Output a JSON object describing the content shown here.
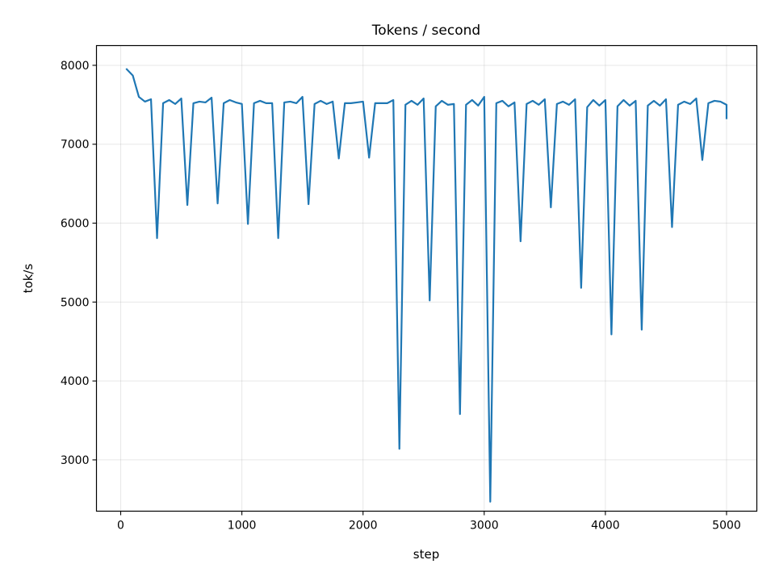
{
  "chart_data": {
    "type": "line",
    "title": "Tokens / second",
    "xlabel": "step",
    "ylabel": "tok/s",
    "xlim": [
      -200,
      5250
    ],
    "ylim": [
      2350,
      8250
    ],
    "xticks": [
      0,
      1000,
      2000,
      3000,
      4000,
      5000
    ],
    "yticks": [
      3000,
      4000,
      5000,
      6000,
      7000,
      8000
    ],
    "grid": true,
    "series": [
      {
        "color": "#1f77b4",
        "x": [
          50,
          100,
          150,
          200,
          250,
          300,
          350,
          400,
          450,
          500,
          550,
          600,
          650,
          700,
          750,
          800,
          850,
          900,
          950,
          1000,
          1050,
          1100,
          1150,
          1200,
          1250,
          1300,
          1350,
          1400,
          1450,
          1500,
          1550,
          1600,
          1650,
          1700,
          1750,
          1800,
          1850,
          1900,
          1950,
          2000,
          2050,
          2100,
          2150,
          2200,
          2250,
          2300,
          2350,
          2400,
          2450,
          2500,
          2550,
          2600,
          2650,
          2700,
          2750,
          2800,
          2850,
          2900,
          2950,
          3000,
          3050,
          3100,
          3150,
          3200,
          3250,
          3300,
          3350,
          3400,
          3450,
          3500,
          3550,
          3600,
          3650,
          3700,
          3750,
          3800,
          3850,
          3900,
          3950,
          4000,
          4050,
          4100,
          4150,
          4200,
          4250,
          4300,
          4350,
          4400,
          4450,
          4500,
          4550,
          4600,
          4650,
          4700,
          4750,
          4800,
          4850,
          4900,
          4950,
          5000,
          5000
        ],
        "y": [
          7950,
          7870,
          7600,
          7540,
          7570,
          5810,
          7520,
          7560,
          7510,
          7580,
          6230,
          7520,
          7540,
          7530,
          7590,
          6250,
          7520,
          7560,
          7530,
          7510,
          5990,
          7520,
          7550,
          7520,
          7520,
          5810,
          7530,
          7540,
          7520,
          7600,
          6240,
          7510,
          7550,
          7510,
          7540,
          6820,
          7520,
          7520,
          7530,
          7540,
          6830,
          7520,
          7520,
          7520,
          7560,
          3140,
          7500,
          7550,
          7500,
          7580,
          5020,
          7480,
          7550,
          7500,
          7510,
          3580,
          7500,
          7560,
          7490,
          7600,
          2470,
          7520,
          7550,
          7480,
          7530,
          5770,
          7510,
          7550,
          7500,
          7570,
          6200,
          7510,
          7540,
          7500,
          7570,
          5180,
          7470,
          7560,
          7490,
          7560,
          4590,
          7480,
          7560,
          7490,
          7550,
          4650,
          7490,
          7550,
          7490,
          7570,
          5950,
          7500,
          7540,
          7510,
          7580,
          6800,
          7520,
          7550,
          7540,
          7500,
          7330
        ]
      }
    ]
  }
}
